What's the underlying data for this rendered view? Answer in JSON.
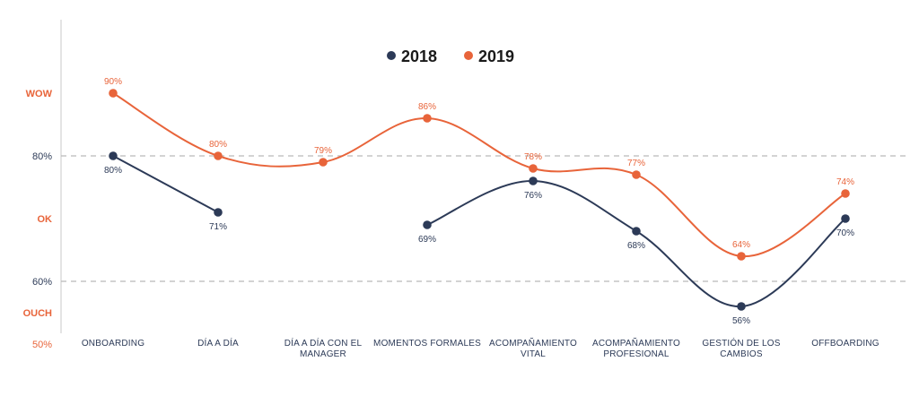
{
  "chart_data": {
    "type": "line",
    "ylim": [
      50,
      100
    ],
    "y_reference_lines": [
      80,
      60
    ],
    "grid": false,
    "legend_position": "top-center",
    "y_labels": [
      {
        "text": "WOW",
        "value": 90,
        "color": "#e8643a",
        "bold": true
      },
      {
        "text": "80%",
        "value": 80,
        "color": "#2c3a57",
        "bold": false
      },
      {
        "text": "OK",
        "value": 70,
        "color": "#e8643a",
        "bold": true
      },
      {
        "text": "60%",
        "value": 60,
        "color": "#2c3a57",
        "bold": false
      },
      {
        "text": "OUCH",
        "value": 55,
        "color": "#e8643a",
        "bold": true
      },
      {
        "text": "50%",
        "value": 50,
        "color": "#e8643a",
        "bold": false
      }
    ],
    "categories": [
      [
        "ONBOARDING"
      ],
      [
        "DÍA A DÍA"
      ],
      [
        "DÍA A DÍA CON EL",
        "MANAGER"
      ],
      [
        "MOMENTOS FORMALES"
      ],
      [
        "ACOMPAÑAMIENTO",
        "VITAL"
      ],
      [
        "ACOMPAÑAMIENTO",
        "PROFESIONAL"
      ],
      [
        "GESTIÓN DE LOS",
        "CAMBIOS"
      ],
      [
        "OFFBOARDING"
      ]
    ],
    "series": [
      {
        "name": "2018",
        "color": "#2c3a57",
        "values": [
          80,
          71,
          null,
          69,
          76,
          68,
          56,
          70
        ],
        "labels": [
          "80%",
          "71%",
          "",
          "69%",
          "76%",
          "68%",
          "56%",
          "70%"
        ],
        "label_position": "below"
      },
      {
        "name": "2019",
        "color": "#e8643a",
        "values": [
          90,
          80,
          79,
          86,
          78,
          77,
          64,
          74
        ],
        "labels": [
          "90%",
          "80%",
          "79%",
          "86%",
          "78%",
          "77%",
          "64%",
          "74%"
        ],
        "label_position": "above"
      }
    ]
  }
}
